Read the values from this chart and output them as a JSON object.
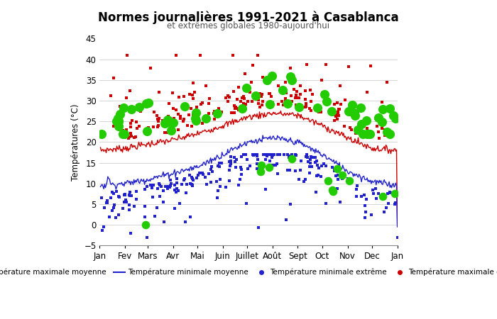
{
  "title": "Normes journalières 1991-2021 à Casablanca",
  "subtitle": "et extrêmes globales 1980-aujourd'hui",
  "ylabel": "Températures (°C)",
  "xlim": [
    0,
    365
  ],
  "ylim": [
    -5,
    45
  ],
  "yticks": [
    -5,
    0,
    5,
    10,
    15,
    20,
    25,
    30,
    35,
    40,
    45
  ],
  "month_labels": [
    "Jan",
    "Fev",
    "Mars",
    "Avr",
    "Mai",
    "Juin",
    "Juillet",
    "Août",
    "Sept",
    "Oct",
    "Nov",
    "Dec",
    "Jan"
  ],
  "month_positions": [
    0,
    31,
    59,
    90,
    120,
    151,
    181,
    212,
    243,
    273,
    304,
    334,
    365
  ],
  "line_color_max": "#cc0000",
  "line_color_min": "#2222cc",
  "scatter_min_color": "#2222cc",
  "scatter_max_color": "#cc0000",
  "green_color": "#22cc00",
  "background_color": "#ffffff",
  "mean_max_base": 18.0,
  "mean_max_amp": 9.0,
  "mean_max_phase": 220,
  "mean_min_base": 10.0,
  "mean_min_amp": 11.0,
  "mean_min_phase": 220,
  "legend_labels": [
    "Température maximale moyenne",
    "Température minimale moyenne",
    "Température minimale extrême",
    "Température maximale extrême"
  ]
}
